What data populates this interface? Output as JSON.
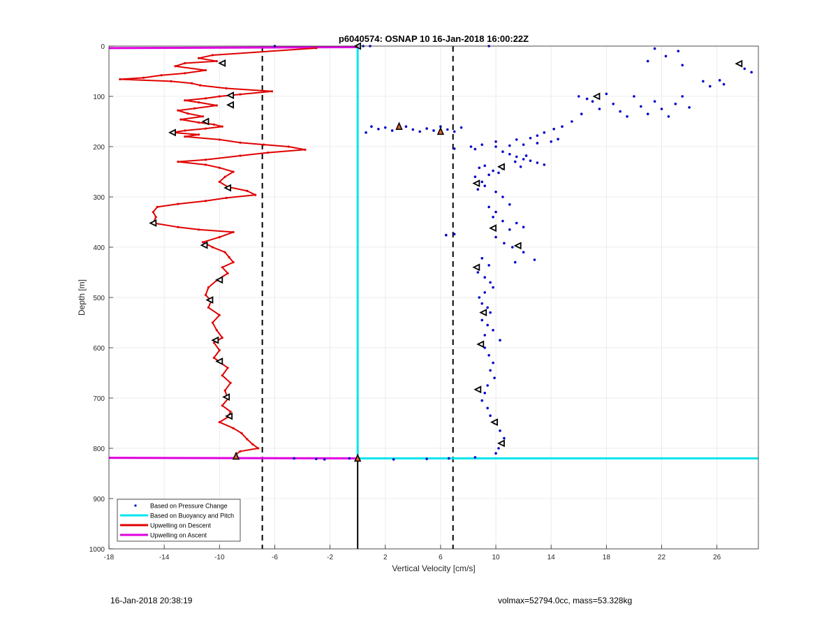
{
  "chart_data": {
    "type": "scatter",
    "title": "p6040574: OSNAP 10 16-Jan-2018 16:00:22Z",
    "xlabel": "Vertical Velocity [cm/s]",
    "ylabel": "Depth [m]",
    "xlim": [
      -18,
      29
    ],
    "ylim": [
      1000,
      0
    ],
    "y_reversed": true,
    "grid": true,
    "xticks": [
      -18,
      -14,
      -10,
      -6,
      -2,
      2,
      6,
      10,
      14,
      18,
      22,
      26
    ],
    "yticks": [
      0,
      100,
      200,
      300,
      400,
      500,
      600,
      700,
      800,
      900,
      1000
    ],
    "legend_position": "bottom-left",
    "colors": {
      "pressure": "#0000cc",
      "buoyancy": "#00e5ee",
      "descent": "#e00000",
      "ascent": "#e000e0",
      "reference": "#000000"
    },
    "reference_lines": {
      "dashed_x": [
        -6.9,
        6.9
      ],
      "solid_x": 0,
      "solid_from_depth": 820
    },
    "series": [
      {
        "name": "Based on Pressure Change",
        "style": "dots",
        "points": [
          [
            0.9,
            0
          ],
          [
            9.5,
            0
          ],
          [
            21.5,
            5
          ],
          [
            22.3,
            20
          ],
          [
            21.0,
            30
          ],
          [
            23.2,
            10
          ],
          [
            23.5,
            38
          ],
          [
            28.5,
            52
          ],
          [
            28.0,
            45
          ],
          [
            25.0,
            70
          ],
          [
            25.5,
            80
          ],
          [
            26.2,
            68
          ],
          [
            26.5,
            76
          ],
          [
            16,
            100
          ],
          [
            16.6,
            105
          ],
          [
            17,
            110
          ],
          [
            17.5,
            125
          ],
          [
            18,
            95
          ],
          [
            18.5,
            115
          ],
          [
            19,
            130
          ],
          [
            19.5,
            140
          ],
          [
            20,
            100
          ],
          [
            20.5,
            120
          ],
          [
            21,
            135
          ],
          [
            21.5,
            110
          ],
          [
            22,
            125
          ],
          [
            22.5,
            140
          ],
          [
            23,
            115
          ],
          [
            23.5,
            100
          ],
          [
            24,
            122
          ],
          [
            15.5,
            150
          ],
          [
            16.2,
            135
          ],
          [
            14.8,
            160
          ],
          [
            14.2,
            165
          ],
          [
            13.5,
            172
          ],
          [
            13.0,
            178
          ],
          [
            12.5,
            183
          ],
          [
            11.5,
            186
          ],
          [
            10.0,
            190
          ],
          [
            9.0,
            196
          ],
          [
            8.2,
            200
          ],
          [
            7.0,
            204
          ],
          [
            8.5,
            205
          ],
          [
            10.0,
            200
          ],
          [
            11.0,
            198
          ],
          [
            12.0,
            196
          ],
          [
            13.0,
            193
          ],
          [
            14.0,
            190
          ],
          [
            14.5,
            185
          ],
          [
            1.0,
            160
          ],
          [
            1.5,
            165
          ],
          [
            2.0,
            162
          ],
          [
            2.5,
            168
          ],
          [
            3.0,
            163
          ],
          [
            3.5,
            160
          ],
          [
            4.0,
            166
          ],
          [
            4.5,
            170
          ],
          [
            5.0,
            164
          ],
          [
            5.5,
            168
          ],
          [
            6.0,
            160
          ],
          [
            6.5,
            166
          ],
          [
            7.0,
            170
          ],
          [
            7.5,
            162
          ],
          [
            0.6,
            172
          ],
          [
            10.5,
            210
          ],
          [
            11,
            215
          ],
          [
            11.5,
            220
          ],
          [
            12,
            225
          ],
          [
            12.5,
            228
          ],
          [
            13,
            232
          ],
          [
            13.5,
            236
          ],
          [
            11.8,
            240
          ],
          [
            10.5,
            244
          ],
          [
            9.8,
            248
          ],
          [
            10.2,
            252
          ],
          [
            11.4,
            230
          ],
          [
            12.2,
            218
          ],
          [
            9.2,
            238
          ],
          [
            8.8,
            242
          ],
          [
            9.5,
            256
          ],
          [
            8.5,
            260
          ],
          [
            9.0,
            270
          ],
          [
            9.2,
            278
          ],
          [
            8.7,
            285
          ],
          [
            10.0,
            290
          ],
          [
            10.5,
            300
          ],
          [
            11.0,
            315
          ],
          [
            9.5,
            320
          ],
          [
            10.0,
            330
          ],
          [
            9.8,
            340
          ],
          [
            10.5,
            348
          ],
          [
            11.5,
            352
          ],
          [
            12.0,
            360
          ],
          [
            11.0,
            365
          ],
          [
            7.0,
            374
          ],
          [
            6.4,
            376
          ],
          [
            10.0,
            380
          ],
          [
            10.6,
            392
          ],
          [
            11.2,
            400
          ],
          [
            12.0,
            410
          ],
          [
            12.8,
            425
          ],
          [
            11.4,
            430
          ],
          [
            9.0,
            422
          ],
          [
            9.5,
            436
          ],
          [
            8.7,
            450
          ],
          [
            9.2,
            460
          ],
          [
            9.6,
            470
          ],
          [
            9.8,
            480
          ],
          [
            9.2,
            490
          ],
          [
            8.8,
            500
          ],
          [
            9.0,
            512
          ],
          [
            9.4,
            520
          ],
          [
            9.6,
            530
          ],
          [
            9.0,
            545
          ],
          [
            9.4,
            555
          ],
          [
            9.8,
            565
          ],
          [
            9.2,
            575
          ],
          [
            10.3,
            585
          ],
          [
            9.2,
            600
          ],
          [
            9.5,
            615
          ],
          [
            9.8,
            630
          ],
          [
            9.6,
            645
          ],
          [
            9.9,
            660
          ],
          [
            9.4,
            675
          ],
          [
            9.2,
            690
          ],
          [
            9.0,
            705
          ],
          [
            9.4,
            720
          ],
          [
            9.6,
            735
          ],
          [
            9.9,
            750
          ],
          [
            10.3,
            765
          ],
          [
            10.6,
            780
          ],
          [
            10.4,
            790
          ],
          [
            10.2,
            800
          ],
          [
            10.0,
            810
          ],
          [
            2.6,
            822
          ],
          [
            5.0,
            821
          ],
          [
            6.6,
            820
          ],
          [
            8.5,
            818
          ],
          [
            -4.6,
            820
          ],
          [
            -3.0,
            821
          ],
          [
            -2.4,
            822
          ],
          [
            -0.6,
            820
          ],
          [
            -6.0,
            0
          ],
          [
            0.4,
            0
          ]
        ]
      },
      {
        "name": "Based on Buoyancy and Pitch",
        "style": "line",
        "segments": [
          [
            [
              0,
              0
            ],
            [
              0,
              820
            ]
          ],
          [
            [
              0,
              820
            ],
            [
              29,
              820
            ]
          ]
        ]
      },
      {
        "name": "Upwelling on Descent",
        "style": "line",
        "points": [
          [
            -3.0,
            4
          ],
          [
            -10.5,
            18
          ],
          [
            -11.5,
            24
          ],
          [
            -10.2,
            30
          ],
          [
            -12.5,
            34
          ],
          [
            -13.2,
            40
          ],
          [
            -11.0,
            48
          ],
          [
            -12.5,
            54
          ],
          [
            -14.2,
            58
          ],
          [
            -15.5,
            63
          ],
          [
            -17.2,
            66
          ],
          [
            -13.5,
            70
          ],
          [
            -12.0,
            74
          ],
          [
            -11.4,
            78
          ],
          [
            -9.5,
            84
          ],
          [
            -6.2,
            90
          ],
          [
            -8.5,
            96
          ],
          [
            -10.0,
            100
          ],
          [
            -11.0,
            104
          ],
          [
            -12.5,
            108
          ],
          [
            -11.5,
            112
          ],
          [
            -10.2,
            118
          ],
          [
            -11.8,
            124
          ],
          [
            -13.0,
            128
          ],
          [
            -12.3,
            134
          ],
          [
            -11.2,
            140
          ],
          [
            -12.8,
            146
          ],
          [
            -11.5,
            152
          ],
          [
            -10.4,
            156
          ],
          [
            -9.8,
            160
          ],
          [
            -11.0,
            164
          ],
          [
            -12.5,
            168
          ],
          [
            -13.4,
            172
          ],
          [
            -11.5,
            176
          ],
          [
            -12.5,
            180
          ],
          [
            -10.0,
            186
          ],
          [
            -8.5,
            192
          ],
          [
            -6.8,
            196
          ],
          [
            -5.0,
            200
          ],
          [
            -3.8,
            206
          ],
          [
            -6.5,
            212
          ],
          [
            -8.5,
            218
          ],
          [
            -11.0,
            226
          ],
          [
            -13.0,
            230
          ],
          [
            -11.0,
            236
          ],
          [
            -10.0,
            242
          ],
          [
            -9.0,
            250
          ],
          [
            -9.6,
            260
          ],
          [
            -10.0,
            270
          ],
          [
            -9.4,
            280
          ],
          [
            -8.0,
            288
          ],
          [
            -7.4,
            296
          ],
          [
            -9.5,
            302
          ],
          [
            -11.0,
            308
          ],
          [
            -13.0,
            314
          ],
          [
            -14.5,
            320
          ],
          [
            -14.8,
            330
          ],
          [
            -14.6,
            340
          ],
          [
            -14.8,
            352
          ],
          [
            -13.0,
            360
          ],
          [
            -11.5,
            365
          ],
          [
            -9.0,
            370
          ],
          [
            -10.0,
            380
          ],
          [
            -11.2,
            390
          ],
          [
            -10.5,
            400
          ],
          [
            -9.6,
            410
          ],
          [
            -9.3,
            420
          ],
          [
            -9.0,
            430
          ],
          [
            -9.8,
            440
          ],
          [
            -9.4,
            452
          ],
          [
            -10.2,
            466
          ],
          [
            -10.8,
            480
          ],
          [
            -11.0,
            495
          ],
          [
            -10.6,
            507
          ],
          [
            -10.8,
            520
          ],
          [
            -10.0,
            535
          ],
          [
            -10.5,
            550
          ],
          [
            -10.2,
            565
          ],
          [
            -9.8,
            580
          ],
          [
            -10.4,
            590
          ],
          [
            -10.0,
            605
          ],
          [
            -10.4,
            620
          ],
          [
            -10.0,
            628
          ],
          [
            -9.4,
            640
          ],
          [
            -9.8,
            655
          ],
          [
            -9.2,
            670
          ],
          [
            -9.6,
            685
          ],
          [
            -9.4,
            702
          ],
          [
            -9.8,
            715
          ],
          [
            -9.2,
            727
          ],
          [
            -9.4,
            738
          ],
          [
            -10.0,
            748
          ],
          [
            -9.0,
            760
          ],
          [
            -8.4,
            770
          ],
          [
            -8.0,
            782
          ],
          [
            -7.6,
            792
          ],
          [
            -7.2,
            800
          ],
          [
            -8.5,
            806
          ],
          [
            -8.8,
            812
          ],
          [
            -8.8,
            818
          ]
        ]
      },
      {
        "name": "Upwelling on Ascent",
        "style": "line",
        "segments": [
          [
            [
              -18,
              4
            ],
            [
              0,
              2
            ]
          ],
          [
            [
              -18,
              819
            ],
            [
              0,
              820
            ]
          ]
        ]
      }
    ],
    "markers_open": [
      [
        -9.8,
        34
      ],
      [
        -9.2,
        98
      ],
      [
        -9.2,
        117
      ],
      [
        -11.0,
        150
      ],
      [
        -13.4,
        172
      ],
      [
        -9.4,
        282
      ],
      [
        -14.8,
        352
      ],
      [
        -11.1,
        396
      ],
      [
        -10.0,
        465
      ],
      [
        -10.7,
        505
      ],
      [
        -10.3,
        585
      ],
      [
        -10.0,
        627
      ],
      [
        -9.5,
        698
      ],
      [
        -9.3,
        736
      ],
      [
        17.3,
        100
      ],
      [
        10.4,
        240
      ],
      [
        8.6,
        273
      ],
      [
        9.8,
        362
      ],
      [
        11.6,
        397
      ],
      [
        8.6,
        440
      ],
      [
        9.1,
        530
      ],
      [
        8.9,
        593
      ],
      [
        8.7,
        683
      ],
      [
        9.9,
        748
      ],
      [
        10.4,
        790
      ],
      [
        27.6,
        35
      ],
      [
        0,
        0
      ]
    ],
    "markers_filled": [
      [
        3.0,
        160
      ],
      [
        6.0,
        170
      ],
      [
        -8.8,
        816
      ],
      [
        0,
        820
      ]
    ],
    "annotations": {
      "left_text": "16-Jan-2018 20:38:19",
      "right_text": "volmax=52794.0cc, mass=53.328kg"
    }
  }
}
